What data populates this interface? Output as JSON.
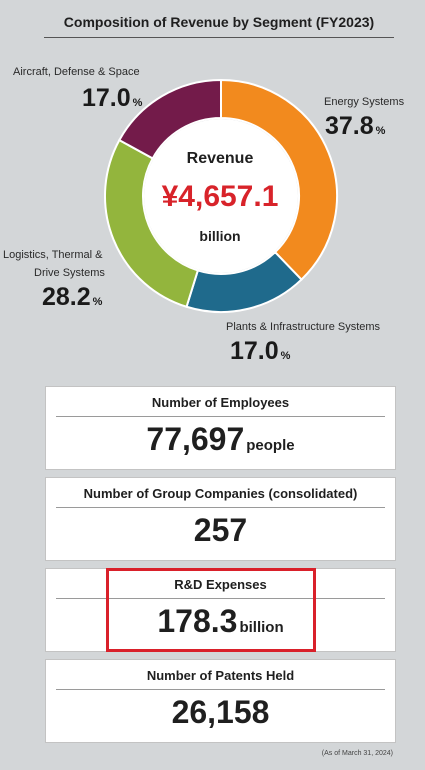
{
  "title": "Composition of Revenue by Segment (FY2023)",
  "chart_data": {
    "type": "pie",
    "title": "Composition of Revenue by Segment (FY2023)",
    "center": {
      "label": "Revenue",
      "amount": "¥4,657.1",
      "unit": "billion"
    },
    "categories": [
      "Energy Systems",
      "Plants & Infrastructure Systems",
      "Logistics, Thermal & Drive Systems",
      "Aircraft, Defense & Space"
    ],
    "values": [
      37.8,
      17.0,
      28.2,
      17.0
    ],
    "colors": [
      "#f28a1e",
      "#1f6a8c",
      "#93b53d",
      "#731b4a"
    ],
    "value_labels": [
      "37.8",
      "17.0",
      "28.2",
      "17.0"
    ],
    "pct_unit": "%",
    "label_lines": {
      "logistics_line1": "Logistics, Thermal &",
      "logistics_line2": "Drive Systems"
    }
  },
  "cards": [
    {
      "label": "Number of Employees",
      "value": "77,697",
      "unit": "people"
    },
    {
      "label": "Number of Group Companies (consolidated)",
      "value": "257",
      "unit": ""
    },
    {
      "label": "R&D Expenses",
      "value": "178.3",
      "unit": "billion"
    },
    {
      "label": "Number of Patents Held",
      "value": "26,158",
      "unit": ""
    }
  ],
  "footnote": "(As of March 31, 2024)",
  "colors": {
    "highlight": "#d9202a",
    "amount": "#d8232a",
    "background": "#d3d6d8"
  }
}
